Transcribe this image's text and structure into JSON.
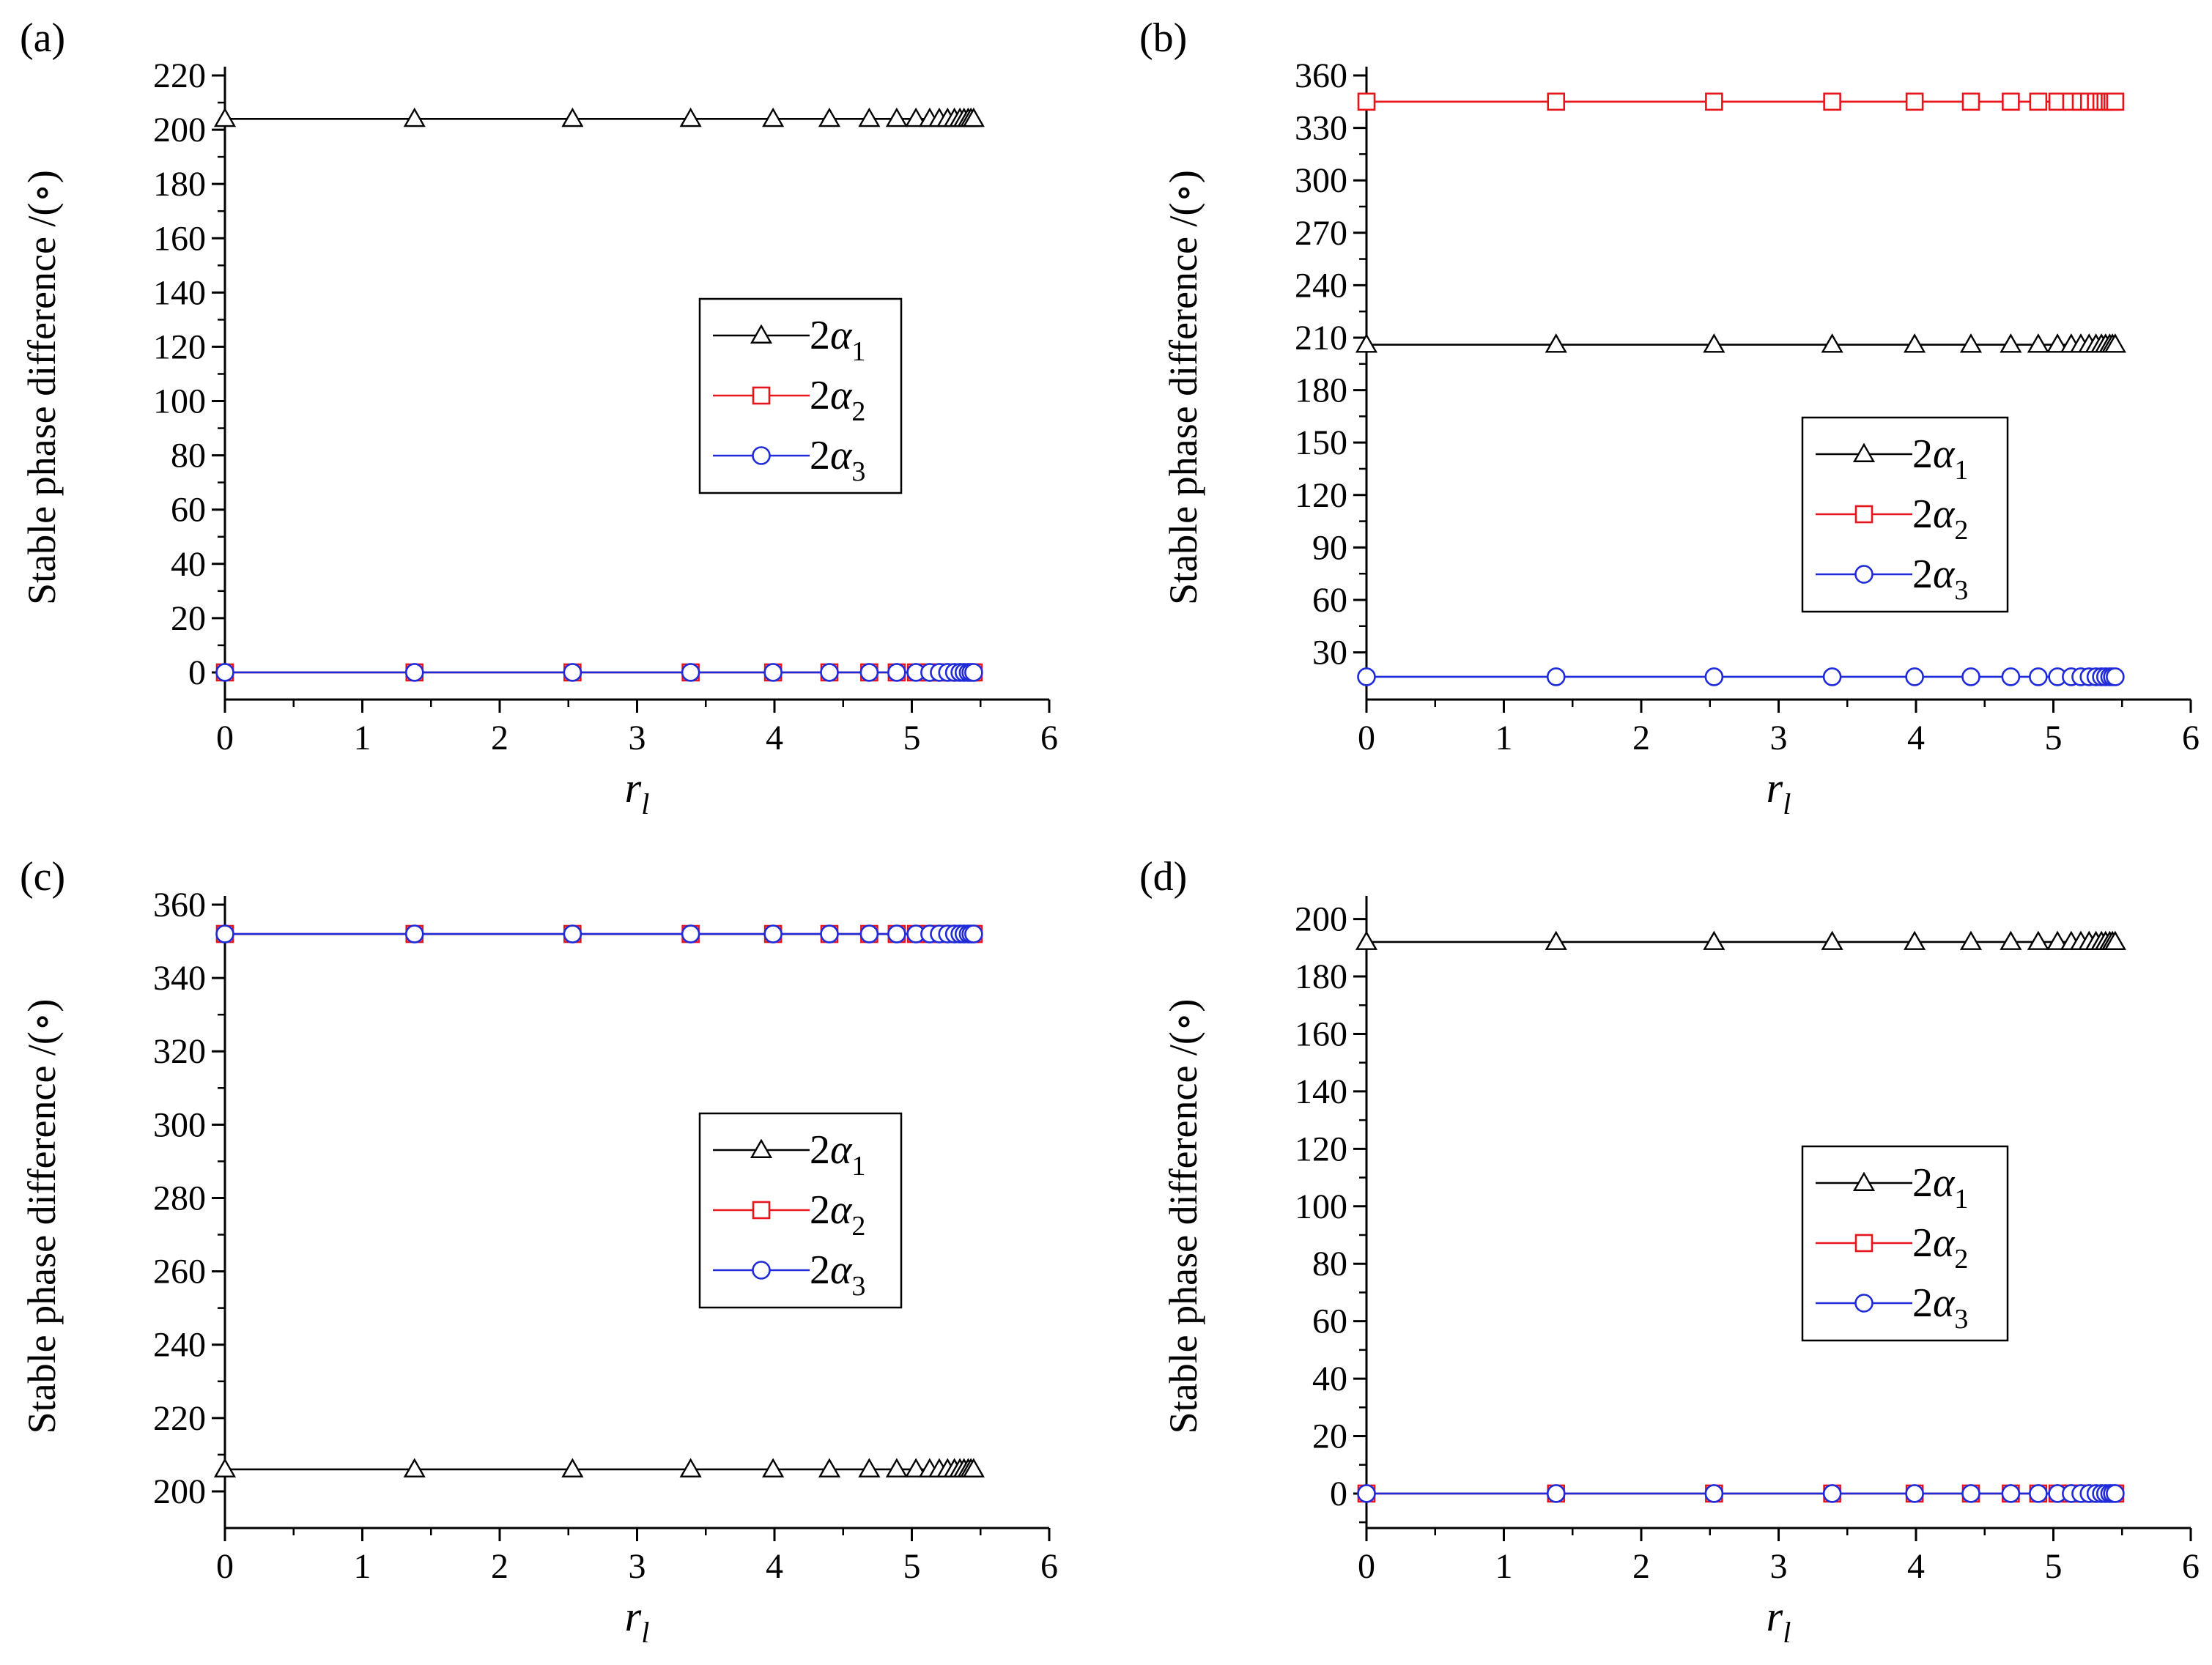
{
  "figure": {
    "x_symbol": "r",
    "x_subscript": "l",
    "y_label": "Stable phase difference  /(∘)",
    "legend_symbol": "2α"
  },
  "colors": {
    "series_1": "#000000",
    "series_2": "#e8141c",
    "series_3": "#1f2ad8",
    "axis": "#000000",
    "legend_bg": "#ffffff"
  },
  "chart_data": [
    {
      "panel": "(a)",
      "type": "line",
      "x_symbol": "r",
      "x_subscript": "l",
      "ylabel": "Stable phase difference  /(∘)",
      "xlim": [
        0,
        6
      ],
      "ylim": [
        -10,
        220
      ],
      "xticks": [
        0,
        1,
        2,
        3,
        4,
        5,
        6
      ],
      "yticks": [
        0,
        20,
        40,
        60,
        80,
        100,
        120,
        140,
        160,
        180,
        200,
        220
      ],
      "legend_position": "center-right",
      "x": [
        0,
        1.38,
        2.53,
        3.39,
        3.99,
        4.4,
        4.69,
        4.89,
        5.03,
        5.13,
        5.2,
        5.26,
        5.31,
        5.35,
        5.38,
        5.41,
        5.43,
        5.45
      ],
      "series": [
        {
          "name": "2α",
          "subscript": "1",
          "marker": "triangle",
          "color": "#000000",
          "y": 204
        },
        {
          "name": "2α",
          "subscript": "2",
          "marker": "square",
          "color": "#e8141c",
          "y": 0
        },
        {
          "name": "2α",
          "subscript": "3",
          "marker": "circle",
          "color": "#1f2ad8",
          "y": 0
        }
      ]
    },
    {
      "panel": "(b)",
      "type": "line",
      "x_symbol": "r",
      "x_subscript": "l",
      "ylabel": "Stable phase difference  /(∘)",
      "xlim": [
        0,
        6
      ],
      "ylim": [
        3,
        360
      ],
      "xticks": [
        0,
        1,
        2,
        3,
        4,
        5,
        6
      ],
      "yticks": [
        30,
        60,
        90,
        120,
        150,
        180,
        210,
        240,
        270,
        300,
        330,
        360
      ],
      "legend_position": "center-right",
      "x": [
        0,
        1.38,
        2.53,
        3.39,
        3.99,
        4.4,
        4.69,
        4.89,
        5.03,
        5.13,
        5.2,
        5.26,
        5.31,
        5.35,
        5.38,
        5.41,
        5.43,
        5.45
      ],
      "series": [
        {
          "name": "2α",
          "subscript": "1",
          "marker": "triangle",
          "color": "#000000",
          "y": 206
        },
        {
          "name": "2α",
          "subscript": "2",
          "marker": "square",
          "color": "#e8141c",
          "y": 345
        },
        {
          "name": "2α",
          "subscript": "3",
          "marker": "circle",
          "color": "#1f2ad8",
          "y": 16
        }
      ]
    },
    {
      "panel": "(c)",
      "type": "line",
      "x_symbol": "r",
      "x_subscript": "l",
      "ylabel": "Stable phase difference  /(∘)",
      "xlim": [
        0,
        6
      ],
      "ylim": [
        190,
        360
      ],
      "xticks": [
        0,
        1,
        2,
        3,
        4,
        5,
        6
      ],
      "yticks": [
        200,
        220,
        240,
        260,
        280,
        300,
        320,
        340,
        360
      ],
      "legend_position": "center-right",
      "x": [
        0,
        1.38,
        2.53,
        3.39,
        3.99,
        4.4,
        4.69,
        4.89,
        5.03,
        5.13,
        5.2,
        5.26,
        5.31,
        5.35,
        5.38,
        5.41,
        5.43,
        5.45
      ],
      "series": [
        {
          "name": "2α",
          "subscript": "1",
          "marker": "triangle",
          "color": "#000000",
          "y": 206
        },
        {
          "name": "2α",
          "subscript": "2",
          "marker": "square",
          "color": "#e8141c",
          "y": 352
        },
        {
          "name": "2α",
          "subscript": "3",
          "marker": "circle",
          "color": "#1f2ad8",
          "y": 352
        }
      ]
    },
    {
      "panel": "(d)",
      "type": "line",
      "x_symbol": "r",
      "x_subscript": "l",
      "ylabel": "Stable phase difference  /(∘)",
      "xlim": [
        0,
        6
      ],
      "ylim": [
        -12,
        205
      ],
      "xticks": [
        0,
        1,
        2,
        3,
        4,
        5,
        6
      ],
      "yticks": [
        0,
        20,
        40,
        60,
        80,
        100,
        120,
        140,
        160,
        180,
        200
      ],
      "legend_position": "center-right",
      "x": [
        0,
        1.38,
        2.53,
        3.39,
        3.99,
        4.4,
        4.69,
        4.89,
        5.03,
        5.13,
        5.2,
        5.26,
        5.31,
        5.35,
        5.38,
        5.41,
        5.43,
        5.45
      ],
      "series": [
        {
          "name": "2α",
          "subscript": "1",
          "marker": "triangle",
          "color": "#000000",
          "y": 192
        },
        {
          "name": "2α",
          "subscript": "2",
          "marker": "square",
          "color": "#e8141c",
          "y": 0
        },
        {
          "name": "2α",
          "subscript": "3",
          "marker": "circle",
          "color": "#1f2ad8",
          "y": 0
        }
      ]
    }
  ]
}
